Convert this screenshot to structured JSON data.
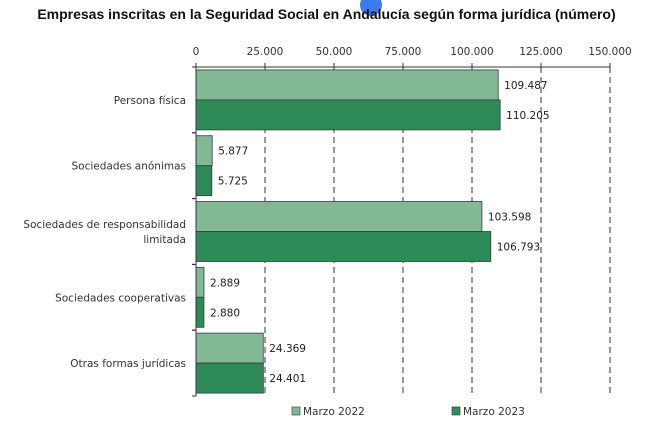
{
  "chart_data": {
    "type": "bar",
    "orientation": "horizontal",
    "title": "Empresas inscritas en la Seguridad Social en Andalucía según forma jurídica (número)",
    "categories": [
      [
        "Persona física"
      ],
      [
        "Sociedades anónimas"
      ],
      [
        "Sociedades de responsabilidad",
        "limitada"
      ],
      [
        "Sociedades cooperativas"
      ],
      [
        "Otras formas jurídicas"
      ]
    ],
    "series": [
      {
        "name": "Marzo 2022",
        "color": "#82b894",
        "values": [
          109487,
          5877,
          103598,
          2889,
          24369
        ],
        "labels": [
          "109.487",
          "5.877",
          "103.598",
          "2.889",
          "24.369"
        ]
      },
      {
        "name": "Marzo 2023",
        "color": "#2e8b57",
        "values": [
          110205,
          5725,
          106793,
          2880,
          24401
        ],
        "labels": [
          "110.205",
          "5.725",
          "106.793",
          "2.880",
          "24.401"
        ]
      }
    ],
    "xlim": [
      0,
      150000
    ],
    "ticks": [
      0,
      25000,
      50000,
      75000,
      100000,
      125000,
      150000
    ],
    "tick_labels": [
      "0",
      "25.000",
      "50.000",
      "75.000",
      "100.000",
      "125.000",
      "150.000"
    ],
    "grid": true,
    "grid_style": "dashed",
    "axis_position": "top",
    "legend_position": "bottom"
  }
}
